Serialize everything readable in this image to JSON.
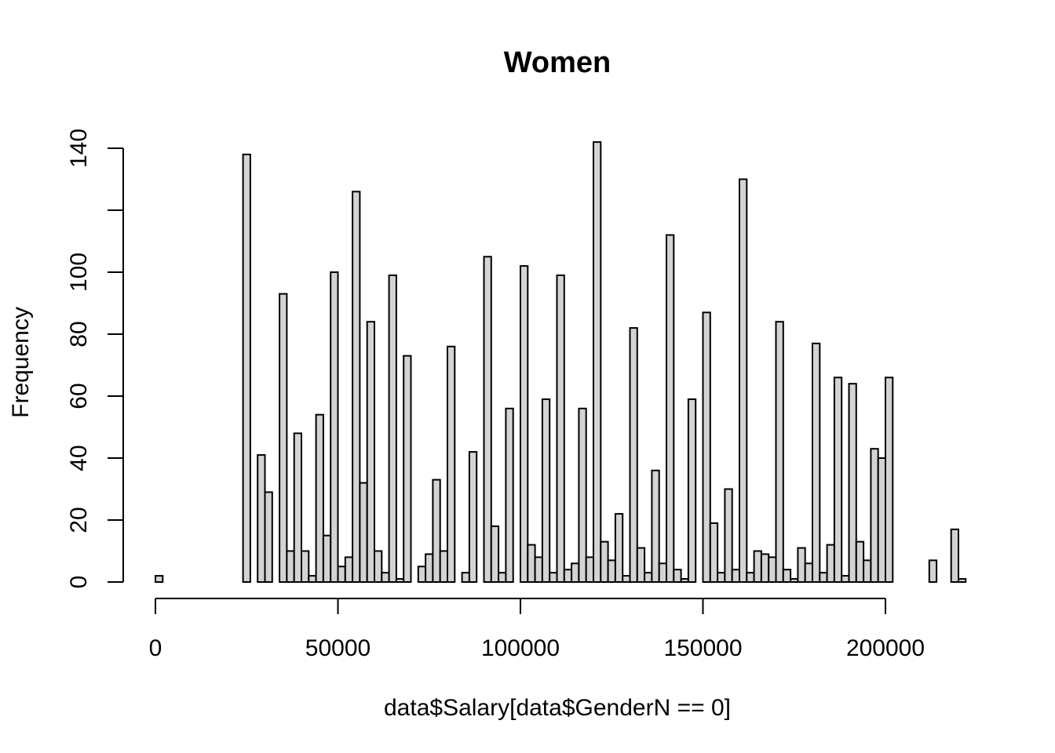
{
  "chart_data": {
    "type": "bar",
    "title": "Women",
    "xlabel": "data$Salary[data$GenderN == 0]",
    "ylabel": "Frequency",
    "x_ticks": [
      "0",
      "50000",
      "100000",
      "150000",
      "200000"
    ],
    "x_tick_values": [
      0,
      50000,
      100000,
      150000,
      200000
    ],
    "y_ticks": [
      "0",
      "20",
      "40",
      "60",
      "80",
      "100",
      "140"
    ],
    "y_tick_values": [
      0,
      20,
      40,
      60,
      80,
      100,
      120,
      140
    ],
    "y_tick_label_shown": [
      true,
      true,
      true,
      true,
      true,
      true,
      false,
      true
    ],
    "xlim": [
      0,
      220000
    ],
    "ylim": [
      0,
      142
    ],
    "bin_width": 2000,
    "bin_start": 0,
    "values": [
      2,
      0,
      0,
      0,
      0,
      0,
      0,
      0,
      0,
      0,
      0,
      0,
      138,
      0,
      41,
      29,
      0,
      93,
      10,
      48,
      10,
      2,
      54,
      15,
      100,
      5,
      8,
      126,
      32,
      84,
      10,
      3,
      99,
      1,
      73,
      0,
      5,
      9,
      33,
      10,
      76,
      0,
      3,
      42,
      0,
      105,
      18,
      3,
      56,
      0,
      102,
      12,
      8,
      59,
      3,
      99,
      4,
      6,
      56,
      8,
      142,
      13,
      7,
      22,
      2,
      82,
      11,
      3,
      36,
      6,
      112,
      4,
      1,
      59,
      0,
      87,
      19,
      3,
      30,
      4,
      130,
      3,
      10,
      9,
      8,
      84,
      4,
      1,
      11,
      6,
      77,
      3,
      12,
      66,
      2,
      64,
      13,
      7,
      43,
      40,
      66,
      0,
      0,
      0,
      0,
      0,
      7,
      0,
      0,
      17,
      1
    ],
    "bar_fill": "#d3d3d3",
    "bar_stroke": "#000000",
    "grid": false,
    "legend": "none"
  }
}
